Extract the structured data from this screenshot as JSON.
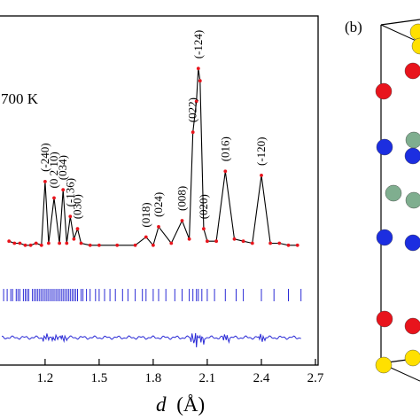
{
  "chart_data": {
    "type": "scatter",
    "temperature_label": "700 K",
    "xlabel_symbol": "d",
    "xlabel_unit": "(Å)",
    "xlim": [
      0.95,
      2.7
    ],
    "x_ticks": [
      "1.2",
      "1.5",
      "1.8",
      "2.1",
      "2.4",
      "2.7"
    ],
    "x_tick_values": [
      1.2,
      1.5,
      1.8,
      2.1,
      2.4,
      2.7
    ],
    "ylim": [
      0,
      100
    ],
    "series": [
      {
        "role": "observed",
        "marker": "dot",
        "color": "#e8141c",
        "points": [
          [
            1.0,
            12
          ],
          [
            1.03,
            11
          ],
          [
            1.06,
            11
          ],
          [
            1.09,
            10
          ],
          [
            1.12,
            10
          ],
          [
            1.15,
            11
          ],
          [
            1.18,
            10
          ],
          [
            1.2,
            41
          ],
          [
            1.22,
            11
          ],
          [
            1.25,
            33
          ],
          [
            1.28,
            11
          ],
          [
            1.3,
            37
          ],
          [
            1.32,
            11
          ],
          [
            1.34,
            24
          ],
          [
            1.36,
            13
          ],
          [
            1.38,
            18
          ],
          [
            1.4,
            11
          ],
          [
            1.45,
            10
          ],
          [
            1.5,
            10
          ],
          [
            1.6,
            10
          ],
          [
            1.7,
            10
          ],
          [
            1.76,
            14
          ],
          [
            1.8,
            10
          ],
          [
            1.83,
            19
          ],
          [
            1.9,
            11
          ],
          [
            1.96,
            22
          ],
          [
            2.0,
            13
          ],
          [
            2.02,
            65
          ],
          [
            2.04,
            80
          ],
          [
            2.05,
            96
          ],
          [
            2.06,
            90
          ],
          [
            2.08,
            18
          ],
          [
            2.1,
            12
          ],
          [
            2.15,
            12
          ],
          [
            2.2,
            46
          ],
          [
            2.25,
            13
          ],
          [
            2.3,
            12
          ],
          [
            2.35,
            11
          ],
          [
            2.4,
            44
          ],
          [
            2.45,
            11
          ],
          [
            2.5,
            11
          ],
          [
            2.55,
            10
          ],
          [
            2.6,
            10
          ]
        ]
      },
      {
        "role": "calculated",
        "marker": "line",
        "color": "#000000"
      },
      {
        "role": "difference",
        "marker": "line",
        "color": "#2b2bd6"
      }
    ],
    "bragg_positions": [
      0.97,
      0.99,
      1.01,
      1.02,
      1.04,
      1.05,
      1.06,
      1.08,
      1.09,
      1.1,
      1.11,
      1.13,
      1.14,
      1.15,
      1.16,
      1.17,
      1.18,
      1.19,
      1.2,
      1.21,
      1.22,
      1.23,
      1.24,
      1.25,
      1.26,
      1.27,
      1.28,
      1.29,
      1.3,
      1.31,
      1.32,
      1.33,
      1.34,
      1.35,
      1.36,
      1.37,
      1.38,
      1.4,
      1.41,
      1.43,
      1.45,
      1.48,
      1.5,
      1.53,
      1.56,
      1.59,
      1.63,
      1.66,
      1.7,
      1.74,
      1.76,
      1.8,
      1.83,
      1.87,
      1.92,
      1.96,
      2.0,
      2.02,
      2.04,
      2.05,
      2.07,
      2.1,
      2.14,
      2.2,
      2.26,
      2.3,
      2.4,
      2.47,
      2.55,
      2.62
    ],
    "peak_labels": [
      {
        "text": "(-240)",
        "x": 1.2,
        "top": 44
      },
      {
        "text": "(0 2 10)",
        "x": 1.25,
        "top": 36
      },
      {
        "text": "(034)",
        "x": 1.3,
        "top": 40
      },
      {
        "text": "(-136)",
        "x": 1.34,
        "top": 27
      },
      {
        "text": "(030)",
        "x": 1.38,
        "top": 21
      },
      {
        "text": "(018)",
        "x": 1.76,
        "top": 17
      },
      {
        "text": "(024)",
        "x": 1.83,
        "top": 22
      },
      {
        "text": "(008)",
        "x": 1.96,
        "top": 25
      },
      {
        "text": "(022)",
        "x": 2.02,
        "top": 68
      },
      {
        "text": "(-124)",
        "x": 2.05,
        "top": 99
      },
      {
        "text": "(020)",
        "x": 2.08,
        "top": 21
      },
      {
        "text": "(016)",
        "x": 2.2,
        "top": 49
      },
      {
        "text": "(-120)",
        "x": 2.4,
        "top": 47
      }
    ]
  },
  "panel_b": {
    "label": "(b)",
    "atoms": [
      {
        "color": "#ffe000"
      },
      {
        "color": "#ffe000"
      },
      {
        "color": "#e8141c"
      },
      {
        "color": "#e8141c"
      },
      {
        "color": "#1c2ee0"
      },
      {
        "color": "#1c2ee0"
      },
      {
        "color": "#7fae8f"
      },
      {
        "color": "#7fae8f"
      },
      {
        "color": "#7fae8f"
      },
      {
        "color": "#1c2ee0"
      },
      {
        "color": "#1c2ee0"
      },
      {
        "color": "#e8141c"
      },
      {
        "color": "#e8141c"
      },
      {
        "color": "#ffe000"
      },
      {
        "color": "#ffe000"
      }
    ]
  }
}
